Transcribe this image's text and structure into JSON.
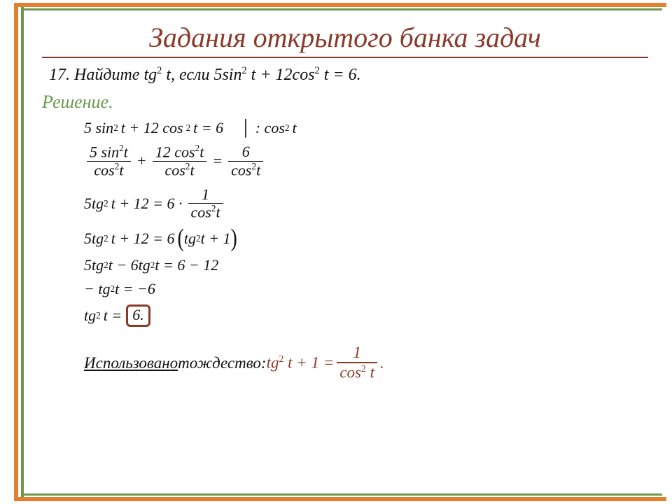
{
  "title": "Задания открытого банка задач",
  "problem": {
    "num": "17.",
    "find": "Найдите tg",
    "find_exp": "2",
    "find_var": " t, если ",
    "eq": "5sin",
    "eq2": " t + 12cos",
    "eq3": " t = 6."
  },
  "solution_label": "Решение.",
  "lines": {
    "l1a": "5 sin",
    "l1b": "t + 12 cos",
    "l1c": "t = 6",
    "l1div": ": cos",
    "l1div_t": "t",
    "f1n": "5 sin",
    "f1nt": "t",
    "f1d": "cos",
    "f1dt": "t",
    "f2n": "12 cos",
    "f2nt": "t",
    "f2d": "cos",
    "f2dt": "t",
    "f3n": "6",
    "f3d": "cos",
    "f3dt": "t",
    "plus": "+",
    "eq": "=",
    "l3a": "5tg",
    "l3b": "t + 12 = 6 ·",
    "f4n": "1",
    "f4d": "cos",
    "f4dt": "t",
    "l4a": "5tg",
    "l4b": "t + 12 = 6",
    "l4c": "tg",
    "l4d": "t + 1",
    "l5a": "5tg",
    "l5b": "t − 6tg",
    "l5c": "t = 6 − 12",
    "l6a": "− tg",
    "l6b": "t = −6",
    "l7a": "tg",
    "l7b": "t =",
    "l7ans": "6.",
    "exp2": "2"
  },
  "identity": {
    "used": "Использовано",
    "word": " тождество: ",
    "lhs1": "tg",
    "lhs2": " t + 1 = ",
    "num": "1",
    "den1": "cos",
    "den2": " t",
    "dot": " .",
    "exp2": "2"
  },
  "colors": {
    "title": "#8a3a2a",
    "green": "#6a994e",
    "orange": "#e08030"
  }
}
